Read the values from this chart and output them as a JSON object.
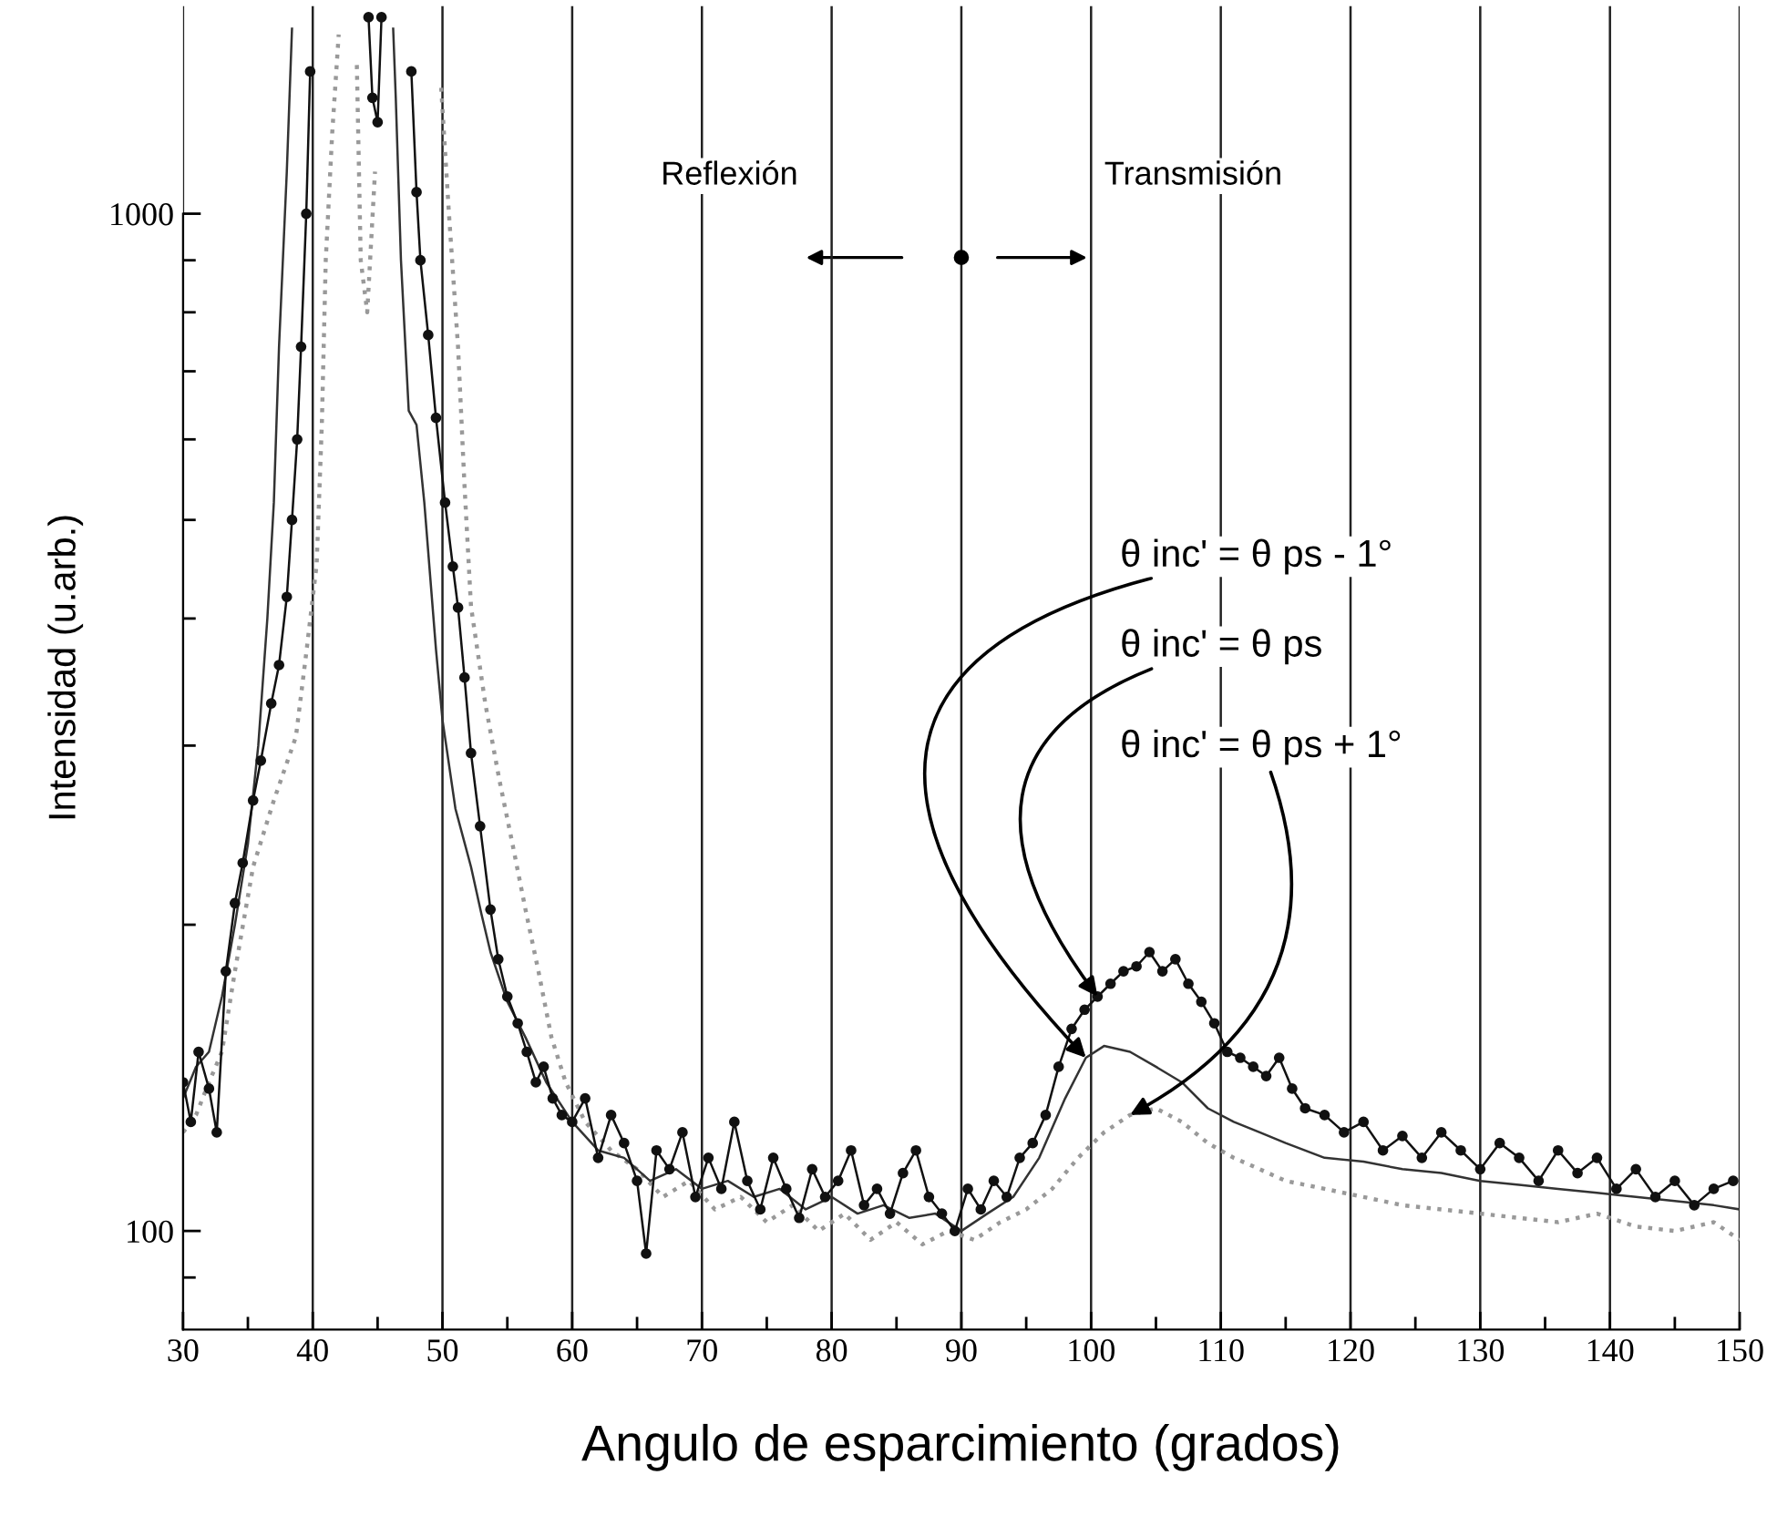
{
  "chart_data": {
    "type": "line",
    "xlabel": "Angulo de esparcimiento (grados)",
    "ylabel": "Intensidad (u.arb.)",
    "xlim": [
      30,
      150
    ],
    "ylim": [
      80,
      1600
    ],
    "log": "y",
    "grid": "x",
    "xticks": [
      30,
      {
        "value": 35,
        "label": null
      },
      40,
      {
        "value": 45,
        "label": null
      },
      50,
      {
        "value": 55,
        "label": null
      },
      60,
      {
        "value": 65,
        "label": null
      },
      70,
      {
        "value": 75,
        "label": null
      },
      80,
      {
        "value": 85,
        "label": null
      },
      90,
      {
        "value": 95,
        "label": null
      },
      100,
      {
        "value": 105,
        "label": null
      },
      110,
      {
        "value": 115,
        "label": null
      },
      120,
      {
        "value": 125,
        "label": null
      },
      130,
      {
        "value": 135,
        "label": null
      },
      140,
      {
        "value": 145,
        "label": null
      },
      150
    ],
    "yticks": [
      {
        "value": 90,
        "label": null
      },
      100,
      {
        "value": 200,
        "label": null
      },
      {
        "value": 300,
        "label": null
      },
      {
        "value": 400,
        "label": null
      },
      {
        "value": 500,
        "label": null
      },
      {
        "value": 600,
        "label": null
      },
      {
        "value": 700,
        "label": null
      },
      {
        "value": 800,
        "label": null
      },
      {
        "value": 900,
        "label": null
      },
      1000
    ],
    "series": [
      {
        "color": "#999999",
        "line_style": "dotted",
        "marker": "none",
        "x": [
          30,
          31,
          32,
          33,
          34,
          35.4,
          37,
          38.7,
          39.5,
          40.3,
          40.7,
          41,
          41.5,
          42,
          42.3,
          43,
          43.4,
          43.7,
          44.2,
          44.8,
          45.2,
          49.5,
          49.9,
          50.5,
          51.2,
          51.7,
          52.2,
          53.3,
          54.4,
          55.4,
          56.4,
          57.4,
          58.4,
          59.5,
          61,
          63,
          65,
          67,
          69,
          71,
          73,
          75,
          77,
          79,
          81,
          83,
          85,
          87,
          89,
          91,
          93,
          95,
          97,
          99,
          101,
          103,
          105,
          107,
          109,
          111,
          113,
          115,
          118,
          121,
          124,
          127,
          130,
          133,
          136,
          139,
          142,
          145,
          148,
          150
        ],
        "values": [
          125,
          130,
          140,
          150,
          180,
          228,
          265,
          306,
          370,
          452,
          620,
          899,
          1200,
          1500,
          null,
          null,
          1400,
          900,
          800,
          1100,
          null,
          null,
          1330,
          1000,
          740,
          540,
          411,
          330,
          277,
          240,
          207,
          180,
          155,
          140,
          128,
          120,
          115,
          108,
          112,
          105,
          108,
          102,
          106,
          100,
          104,
          98,
          102,
          97,
          100,
          98,
          102,
          105,
          110,
          118,
          125,
          130,
          132,
          128,
          122,
          118,
          115,
          112,
          110,
          108,
          106,
          105,
          104,
          103,
          102,
          104,
          101,
          100,
          102,
          98
        ]
      },
      {
        "color": "#333333",
        "line_style": "solid",
        "marker": "none",
        "x": [
          30,
          31,
          32,
          33,
          34,
          35,
          35.8,
          36.5,
          37,
          37.4,
          38,
          38.4,
          38.6,
          45.8,
          46.2,
          46.4,
          46.8,
          47.4,
          48,
          48.6,
          49.5,
          50,
          51,
          52.2,
          53,
          53.7,
          55,
          56.4,
          58,
          60,
          62,
          64,
          66,
          68,
          70,
          72,
          74,
          76,
          78,
          80,
          82,
          84,
          86,
          88,
          90,
          92,
          94,
          96,
          98,
          99.6,
          101,
          103,
          105,
          107,
          109,
          111,
          113,
          115,
          118,
          121,
          124,
          127,
          130,
          133,
          136,
          139,
          142,
          145,
          148,
          150
        ],
        "values": [
          135,
          145,
          150,
          170,
          200,
          240,
          300,
          400,
          520,
          740,
          1100,
          1520,
          null,
          null,
          1520,
          1300,
          900,
          640,
          620,
          520,
          373,
          318,
          260,
          228,
          205,
          188,
          168,
          155,
          140,
          128,
          120,
          118,
          112,
          115,
          110,
          112,
          108,
          110,
          105,
          108,
          104,
          106,
          103,
          104,
          100,
          104,
          108,
          118,
          135,
          148,
          152,
          150,
          145,
          140,
          132,
          128,
          125,
          122,
          118,
          117,
          115,
          114,
          112,
          111,
          110,
          109,
          108,
          107,
          106,
          105
        ]
      },
      {
        "color": "#111111",
        "line_style": "solid",
        "marker": "circle",
        "x": [
          30,
          30.6,
          31.2,
          32,
          32.6,
          33.3,
          34,
          34.6,
          35.4,
          36,
          36.8,
          37.4,
          38,
          38.4,
          38.8,
          39.1,
          39.5,
          39.8,
          40,
          44,
          44.3,
          44.6,
          45,
          45.3,
          45.6,
          47.3,
          47.6,
          48,
          48.3,
          48.9,
          49.5,
          50.2,
          50.8,
          51.2,
          51.7,
          52.2,
          52.9,
          53.7,
          54.3,
          55,
          55.8,
          56.5,
          57.2,
          57.8,
          58.5,
          59.2,
          60,
          61,
          62,
          63,
          64,
          65,
          65.7,
          66.5,
          67.5,
          68.5,
          69.5,
          70.5,
          71.5,
          72.5,
          73.5,
          74.5,
          75.5,
          76.5,
          77.5,
          78.5,
          79.5,
          80.5,
          81.5,
          82.5,
          83.5,
          84.5,
          85.5,
          86.5,
          87.5,
          88.5,
          89.5,
          90.5,
          91.5,
          92.5,
          93.5,
          94.5,
          95.5,
          96.5,
          97.5,
          98.5,
          99.5,
          100.5,
          101.5,
          102.5,
          103.5,
          104.5,
          105.5,
          106.5,
          107.5,
          108.5,
          109.5,
          110.5,
          111.5,
          112.5,
          113.5,
          114.5,
          115.5,
          116.5,
          118,
          119.5,
          121,
          122.5,
          124,
          125.5,
          127,
          128.5,
          130,
          131.5,
          133,
          134.5,
          136,
          137.5,
          139,
          140.5,
          142,
          143.5,
          145,
          146.5,
          148,
          149.5
        ],
        "values": [
          140,
          128,
          150,
          138,
          125,
          180,
          210,
          230,
          265,
          290,
          330,
          360,
          420,
          500,
          600,
          740,
          1000,
          1380,
          null,
          null,
          1560,
          1300,
          1230,
          1560,
          null,
          null,
          1380,
          1050,
          900,
          760,
          630,
          520,
          450,
          410,
          350,
          295,
          250,
          207,
          185,
          170,
          160,
          150,
          140,
          145,
          135,
          130,
          128,
          135,
          118,
          130,
          122,
          112,
          95,
          120,
          115,
          125,
          108,
          118,
          110,
          128,
          112,
          105,
          118,
          110,
          103,
          115,
          108,
          112,
          120,
          106,
          110,
          104,
          114,
          120,
          108,
          104,
          100,
          110,
          105,
          112,
          108,
          118,
          122,
          130,
          145,
          158,
          165,
          170,
          175,
          180,
          182,
          188,
          180,
          185,
          175,
          168,
          160,
          150,
          148,
          145,
          142,
          148,
          138,
          132,
          130,
          125,
          128,
          120,
          124,
          118,
          125,
          120,
          115,
          122,
          118,
          112,
          120,
          114,
          118,
          110,
          115,
          108,
          112,
          106,
          110,
          112
        ]
      }
    ],
    "annotations": [
      "Reflexión",
      "Transmisión",
      {
        "text": "θ inc' = θ ps - 1°",
        "x": 99.6,
        "y": 148
      },
      {
        "text": "θ inc' = θ ps",
        "x": 100.5,
        "y": 170
      },
      {
        "text": "θ inc' = θ ps + 1°",
        "x": 103,
        "y": 130
      }
    ]
  }
}
